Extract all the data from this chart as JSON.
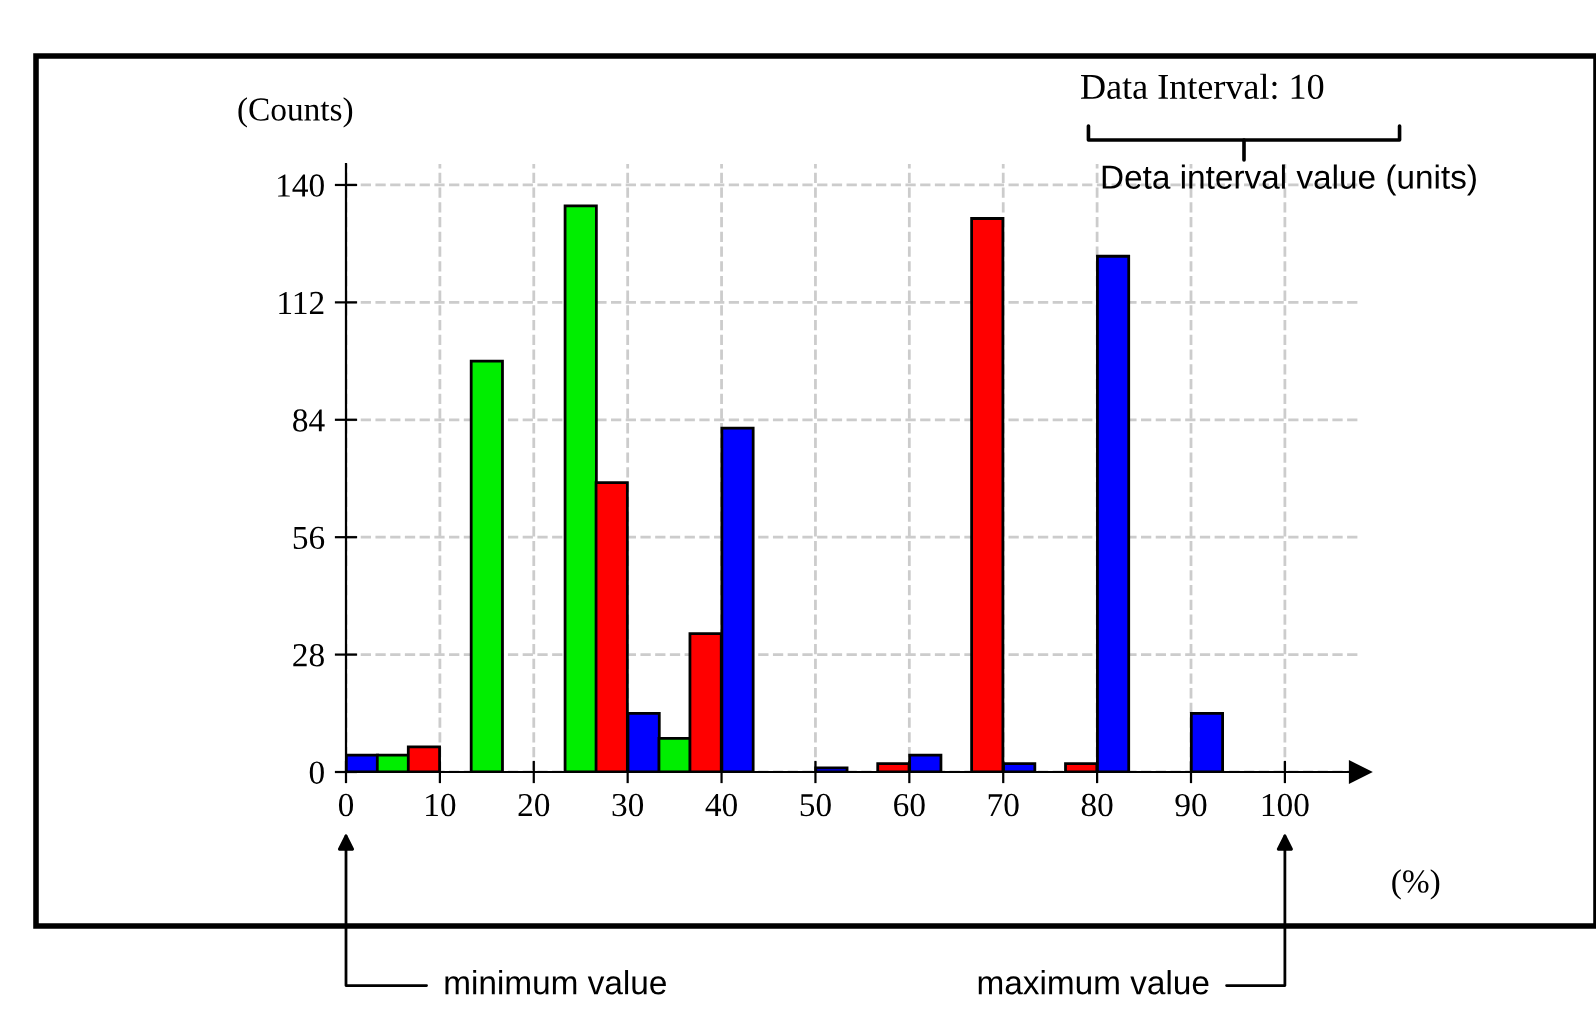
{
  "chart_data": {
    "type": "bar",
    "xlabel": "(%)",
    "ylabel": "(Counts)",
    "series": [
      {
        "color": "#0000ff",
        "x": [
          1.7,
          31.7,
          41.7,
          51.7,
          61.7,
          71.7,
          81.7,
          91.7
        ],
        "values": [
          4,
          14,
          82,
          1,
          4,
          2,
          123,
          14
        ]
      },
      {
        "color": "#00ee00",
        "x": [
          5,
          15,
          25,
          35
        ],
        "values": [
          4,
          98,
          135,
          8
        ]
      },
      {
        "color": "#ff0000",
        "x": [
          8.3,
          28.3,
          38.3,
          58.3,
          68.3,
          78.3
        ],
        "values": [
          6,
          69,
          33,
          2,
          132,
          2
        ]
      }
    ],
    "xlim": [
      0,
      108
    ],
    "ylim": [
      0,
      145
    ],
    "xticks": [
      0,
      10,
      20,
      30,
      40,
      50,
      60,
      70,
      80,
      90,
      100
    ],
    "yticks": [
      0,
      28,
      56,
      84,
      112,
      140
    ],
    "grid": true,
    "line_style": "dashed",
    "annotations": [
      "Data Interval: 10",
      "Deta interval value (units)",
      "minimum value",
      "maximum value"
    ]
  }
}
